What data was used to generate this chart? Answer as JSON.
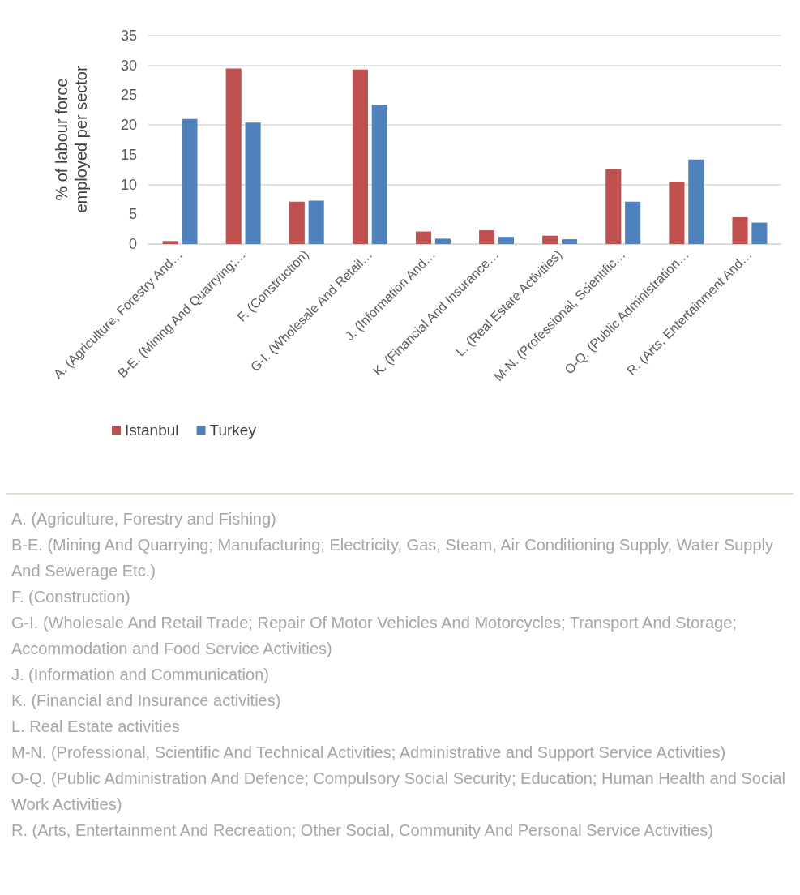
{
  "chart_data": {
    "type": "bar",
    "ylabel": "% of labour force\nemployed per sector",
    "categories": [
      "A. (Agriculture, Forestry And…",
      "B-E. (Mining And Quarrying;…",
      "F. (Construction)",
      "G-I. (Wholesale And Retail…",
      "J. (Information And…",
      "K. (Financial And Insurance…",
      "L. (Real Estate Activities)",
      "M-N. (Professional, Scientific…",
      "O-Q. (Public Administration…",
      "R. (Arts, Entertainment And…"
    ],
    "series": [
      {
        "name": "Istanbul",
        "color": "#c0504d",
        "values": [
          0.5,
          29.5,
          7.1,
          29.3,
          2.1,
          2.3,
          1.4,
          12.6,
          10.5,
          4.5
        ]
      },
      {
        "name": "Turkey",
        "color": "#4f81bd",
        "values": [
          21.0,
          20.4,
          7.3,
          23.4,
          0.9,
          1.2,
          0.8,
          7.1,
          14.2,
          3.6
        ]
      }
    ],
    "ylim": [
      0,
      35
    ],
    "yticks": [
      0,
      5,
      10,
      15,
      20,
      25,
      30,
      35
    ],
    "grid": "y",
    "legend": "bottom left",
    "annotations": [
      "A. (Agriculture, Forestry and Fishing)",
      "B-E. (Mining And Quarrying; Manufacturing; Electricity, Gas, Steam, Air Conditioning Supply, Water Supply And Sewerage Etc.)",
      "F. (Construction)",
      "G-I. (Wholesale And Retail Trade; Repair Of Motor Vehicles And Motorcycles; Transport And Storage; Accommodation and Food Service Activities)",
      "J. (Information and Communication)",
      "K. (Financial and Insurance activities)",
      "L. Real Estate activities",
      "M-N. (Professional, Scientific And Technical Activities; Administrative and Support Service Activities)",
      "O-Q. (Public Administration And Defence; Compulsory Social Security; Education; Human Health and Social Work Activities)",
      "R. (Arts, Entertainment And Recreation; Other Social, Community And Personal Service Activities)"
    ]
  }
}
